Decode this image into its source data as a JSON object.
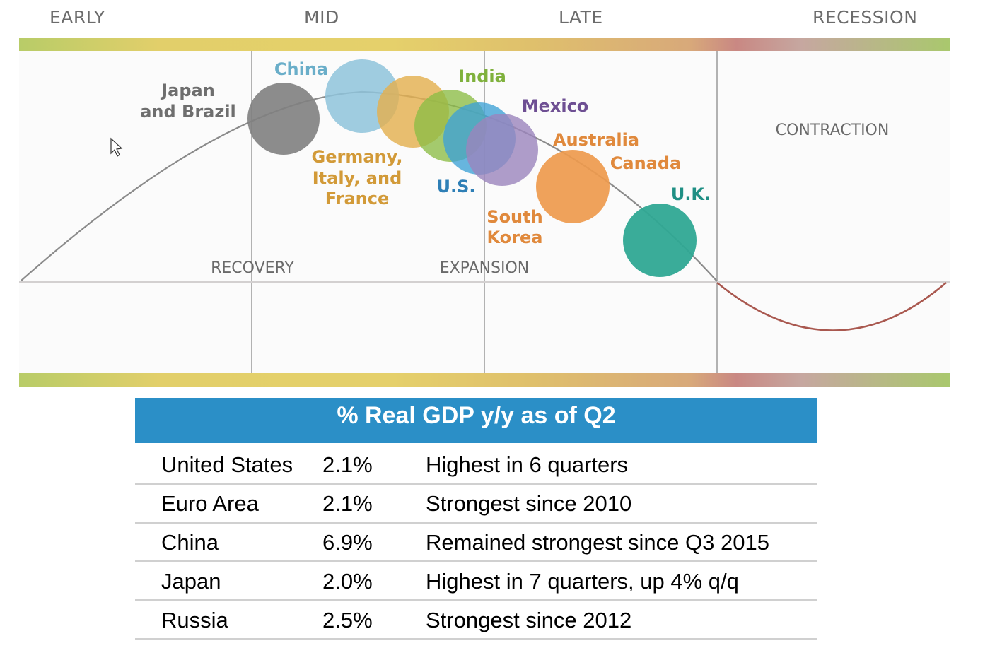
{
  "phases": [
    "EARLY",
    "MID",
    "LATE",
    "RECESSION"
  ],
  "stages": {
    "recovery": "RECOVERY",
    "expansion": "EXPANSION",
    "contraction": "CONTRACTION"
  },
  "countries": [
    {
      "lines": [
        "Japan",
        "and Brazil"
      ],
      "bubble_color": "#7f7f7f",
      "text_color": "#6e6e6e"
    },
    {
      "lines": [
        "China"
      ],
      "bubble_color": "#8ec3da",
      "text_color": "#6aaec9"
    },
    {
      "lines": [
        "Germany,",
        "Italy, and",
        "France"
      ],
      "bubble_color": "#e3b04f",
      "text_color": "#d29a38"
    },
    {
      "lines": [
        "India"
      ],
      "bubble_color": "#8cbd45",
      "text_color": "#7fb13c"
    },
    {
      "lines": [
        "U.S."
      ],
      "bubble_color": "#3ea2d6",
      "text_color": "#2e7fb6"
    },
    {
      "lines": [
        "Mexico"
      ],
      "bubble_color": "#9b84bd",
      "text_color": "#6e4f93"
    },
    {
      "lines": [
        "Australia"
      ],
      "bubble_color": "#ee9a4d",
      "text_color": "#e0893c"
    },
    {
      "lines": [
        "Canada"
      ],
      "bubble_color": "#ee9a4d",
      "text_color": "#e0893c"
    },
    {
      "lines": [
        "South",
        "Korea"
      ],
      "bubble_color": "#ee9a4d",
      "text_color": "#e0893c"
    },
    {
      "lines": [
        "U.K."
      ],
      "bubble_color": "#2fa894",
      "text_color": "#1f8f84"
    }
  ],
  "table": {
    "title": "% Real GDP y/y as of Q2",
    "rows": [
      {
        "country": "United States",
        "value": "2.1%",
        "note": "Highest in 6 quarters"
      },
      {
        "country": "Euro Area",
        "value": "2.1%",
        "note": "Strongest since 2010"
      },
      {
        "country": "China",
        "value": "6.9%",
        "note": "Remained strongest since Q3 2015"
      },
      {
        "country": "Japan",
        "value": "2.0%",
        "note": "Highest in 7 quarters, up 4% q/q"
      },
      {
        "country": "Russia",
        "value": "2.5%",
        "note": "Strongest since 2012"
      }
    ]
  },
  "colors": {
    "table_header": "#2b8fc7",
    "curve": "#8a8a8a",
    "recession_curve": "#a9584f",
    "band_green": "#a9c86d",
    "band_yellow": "#e1cf6c",
    "band_red": "#c98a86"
  }
}
